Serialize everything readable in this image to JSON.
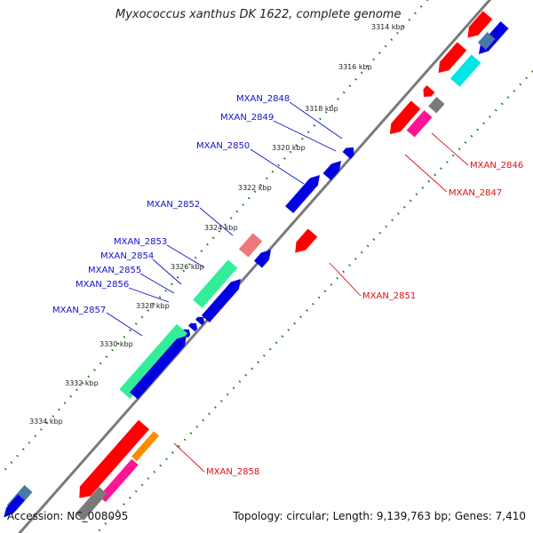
{
  "title": "Myxococcus xanthus DK 1622, complete genome",
  "footer": {
    "accession": "Accession: NC_008095",
    "summary": "Topology: circular; Length: 9,139,763 bp; Genes: 7,410"
  },
  "colors": {
    "backbone": "#7a7a7a",
    "tick_dots": "#1a7a1a",
    "plus_label": "#1010d0",
    "minus_label": "#e01010",
    "gene_red": "#ff0000",
    "gene_blue": "#0000e0",
    "gene_green": "#33ee99",
    "gene_pink": "#f07878",
    "gene_magenta": "#ff1493",
    "gene_gray": "#7a7a7a",
    "gene_cyan": "#00e5e5",
    "gene_steel": "#4a78a8",
    "gene_orange": "#ff8c00"
  },
  "ticks": [
    "3314 kbp",
    "3316 kbp",
    "3318 kbp",
    "3320 kbp",
    "3322 kbp",
    "3324 kbp",
    "3326 kbp",
    "3328 kbp",
    "3330 kbp",
    "3332 kbp",
    "3334 kbp"
  ],
  "gene_labels_plus": [
    "MXAN_2848",
    "MXAN_2849",
    "MXAN_2850",
    "MXAN_2852",
    "MXAN_2853",
    "MXAN_2854",
    "MXAN_2855",
    "MXAN_2856",
    "MXAN_2857"
  ],
  "gene_labels_minus": [
    "MXAN_2846",
    "MXAN_2847",
    "MXAN_2851",
    "MXAN_2858"
  ]
}
